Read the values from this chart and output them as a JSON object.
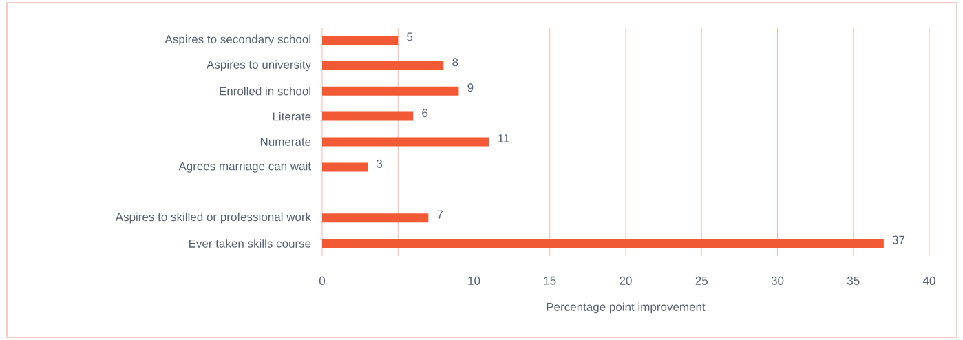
{
  "chart_data": {
    "type": "bar",
    "orientation": "horizontal",
    "xlabel": "Percentage point improvement",
    "categories": [
      "Aspires to secondary school",
      "Aspires to university",
      "Enrolled in school",
      "Literate",
      "Numerate",
      "Agrees marriage can wait",
      null,
      "Aspires to skilled or professional work",
      "Ever taken skills course"
    ],
    "values": [
      5,
      8,
      9,
      6,
      11,
      3,
      null,
      7,
      37
    ],
    "color": "#f15a35",
    "data_labels": true,
    "grid": "x",
    "xlim": [
      0,
      40
    ],
    "xticks": [
      0,
      {
        "value": 5,
        "label": null
      },
      10,
      15,
      20,
      25,
      30,
      35,
      40
    ]
  }
}
